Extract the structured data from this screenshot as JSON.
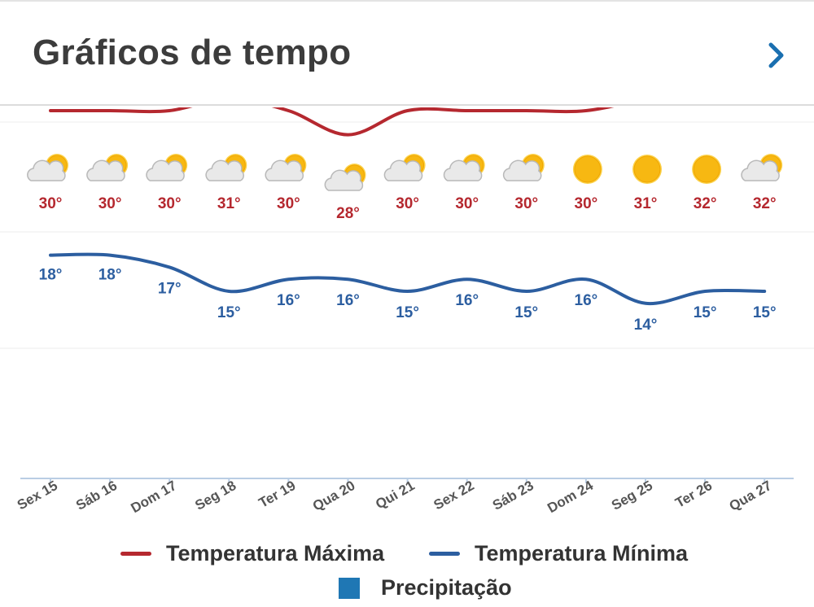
{
  "header": {
    "title": "Gráficos de tempo",
    "chevron_icon": "chevron-right-icon"
  },
  "colors": {
    "max": "#b5282f",
    "min": "#2c5ea0",
    "precip": "#1f77b4",
    "axis": "#b9cde4"
  },
  "chart_data": {
    "type": "line",
    "categories": [
      "Sex 15",
      "Sáb 16",
      "Dom 17",
      "Seg 18",
      "Ter 19",
      "Qua 20",
      "Qui 21",
      "Sex 22",
      "Sáb 23",
      "Dom 24",
      "Seg 25",
      "Ter 26",
      "Qua 27"
    ],
    "series": [
      {
        "name": "Temperatura Máxima",
        "values": [
          30,
          30,
          30,
          31,
          30,
          28,
          30,
          30,
          30,
          30,
          31,
          32,
          32
        ]
      },
      {
        "name": "Temperatura Mínima",
        "values": [
          18,
          18,
          17,
          15,
          16,
          16,
          15,
          16,
          15,
          16,
          14,
          15,
          15
        ]
      }
    ],
    "precipitation": {
      "name": "Precipitação"
    },
    "icons": [
      "partly-cloudy-icon",
      "partly-cloudy-icon",
      "partly-cloudy-icon",
      "partly-cloudy-icon",
      "partly-cloudy-icon",
      "partly-cloudy-icon",
      "partly-cloudy-icon",
      "partly-cloudy-icon",
      "partly-cloudy-icon",
      "sun-icon",
      "sun-icon",
      "sun-icon",
      "partly-cloudy-icon"
    ],
    "unit": "°"
  }
}
